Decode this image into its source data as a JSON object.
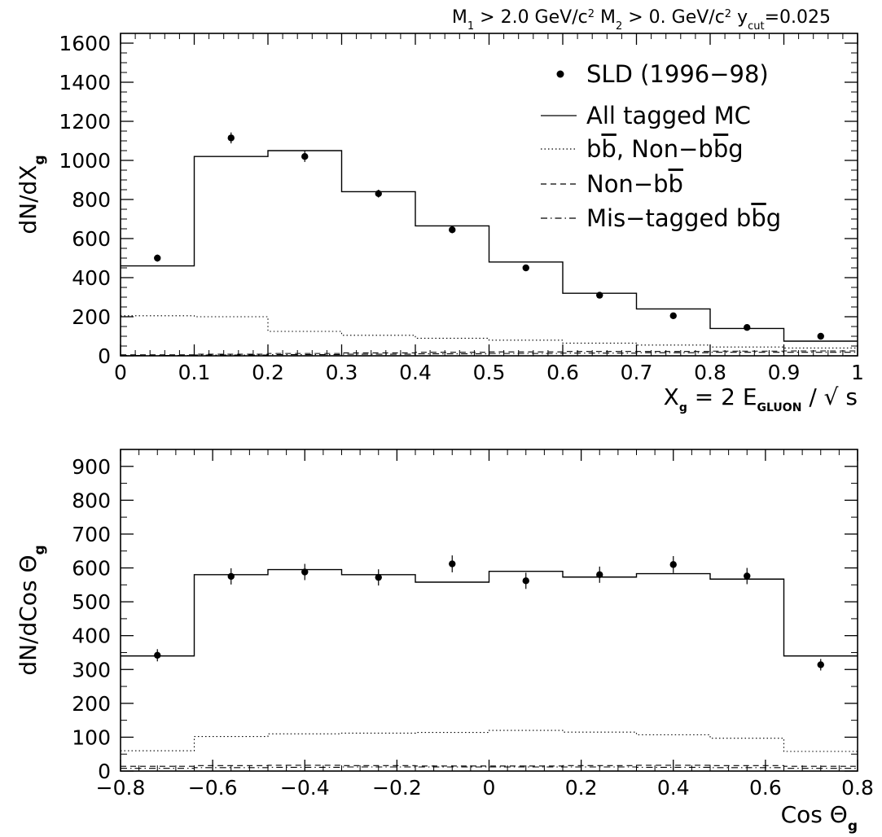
{
  "header": {
    "title_parts": [
      "M",
      "1",
      " > 2.0 GeV/c",
      "2",
      "  M",
      "2",
      " > 0. GeV/c",
      "2",
      "  y",
      "cut",
      "=0.025"
    ]
  },
  "chart_data": [
    {
      "type": "histogram",
      "panel": "top",
      "xlabel_parts": [
        "X",
        "g",
        " = 2 E",
        "GLUON",
        " / √ s"
      ],
      "ylabel_parts": [
        "dN/dX",
        "g"
      ],
      "xlim": [
        0,
        1
      ],
      "ylim": [
        0,
        1650
      ],
      "x_ticks": [
        0,
        0.1,
        0.2,
        0.3,
        0.4,
        0.5,
        0.6,
        0.7,
        0.8,
        0.9,
        1
      ],
      "x_tick_labels": [
        "0",
        "0.1",
        "0.2",
        "0.3",
        "0.4",
        "0.5",
        "0.6",
        "0.7",
        "0.8",
        "0.9",
        "1"
      ],
      "y_ticks": [
        0,
        200,
        400,
        600,
        800,
        1000,
        1200,
        1400,
        1600
      ],
      "y_tick_labels": [
        "0",
        "200",
        "400",
        "600",
        "800",
        "1000",
        "1200",
        "1400",
        "1600"
      ],
      "bin_edges": [
        0,
        0.1,
        0.2,
        0.3,
        0.4,
        0.5,
        0.6,
        0.7,
        0.8,
        0.9,
        1.0
      ],
      "data_points": {
        "name": "SLD (1996−98)",
        "x": [
          0.05,
          0.15,
          0.25,
          0.35,
          0.45,
          0.55,
          0.65,
          0.75,
          0.85,
          0.95
        ],
        "y": [
          500,
          1115,
          1020,
          830,
          645,
          450,
          310,
          205,
          145,
          100
        ],
        "err": [
          18,
          28,
          28,
          20,
          18,
          14,
          10,
          8,
          6,
          5
        ]
      },
      "series": [
        {
          "name": "All tagged MC",
          "style": "solid",
          "values": [
            460,
            1020,
            1050,
            840,
            665,
            480,
            320,
            240,
            140,
            75
          ]
        },
        {
          "name": "bb, Non-bbg",
          "style": "dotted",
          "values": [
            205,
            200,
            125,
            105,
            90,
            80,
            65,
            55,
            45,
            40
          ]
        },
        {
          "name": "Non-bb",
          "style": "dashed",
          "values": [
            5,
            8,
            12,
            15,
            18,
            20,
            22,
            22,
            24,
            25
          ]
        },
        {
          "name": "Mis-tagged bbg",
          "style": "dashdot",
          "values": [
            2,
            4,
            6,
            8,
            10,
            12,
            14,
            16,
            18,
            18
          ]
        }
      ],
      "legend": {
        "position": "top-right",
        "entries": [
          {
            "style": "marker",
            "text": "SLD (1996−98)"
          },
          {
            "style": "solid",
            "text": "All tagged MC"
          },
          {
            "style": "dotted",
            "parts": [
              [
                "b",
                false
              ],
              [
                "b",
                true
              ],
              [
                ", Non−b",
                false
              ],
              [
                "b",
                true
              ],
              [
                "g",
                false
              ]
            ]
          },
          {
            "style": "dashed",
            "parts": [
              [
                "Non−b",
                false
              ],
              [
                "b",
                true
              ]
            ]
          },
          {
            "style": "dashdot",
            "parts": [
              [
                "Mis−tagged b",
                false
              ],
              [
                "b",
                true
              ],
              [
                "g",
                false
              ]
            ]
          }
        ]
      }
    },
    {
      "type": "histogram",
      "panel": "bottom",
      "xlabel_parts": [
        "Cos Θ",
        "g"
      ],
      "ylabel_parts": [
        "dN/dCos Θ",
        "g"
      ],
      "xlim": [
        -0.8,
        0.8
      ],
      "ylim": [
        0,
        950
      ],
      "x_ticks": [
        -0.8,
        -0.6,
        -0.4,
        -0.2,
        0,
        0.2,
        0.4,
        0.6,
        0.8
      ],
      "x_tick_labels": [
        "−0.8",
        "−0.6",
        "−0.4",
        "−0.2",
        "0",
        "0.2",
        "0.4",
        "0.6",
        "0.8"
      ],
      "y_ticks": [
        0,
        100,
        200,
        300,
        400,
        500,
        600,
        700,
        800,
        900
      ],
      "y_tick_labels": [
        "0",
        "100",
        "200",
        "300",
        "400",
        "500",
        "600",
        "700",
        "800",
        "900"
      ],
      "bin_edges": [
        -0.8,
        -0.64,
        -0.48,
        -0.32,
        -0.16,
        0,
        0.16,
        0.32,
        0.48,
        0.64,
        0.8
      ],
      "data_points": {
        "name": "SLD (1996−98)",
        "x": [
          -0.72,
          -0.56,
          -0.4,
          -0.24,
          -0.08,
          0.08,
          0.24,
          0.4,
          0.56,
          0.72
        ],
        "y": [
          342,
          575,
          588,
          572,
          612,
          562,
          580,
          610,
          576,
          314
        ],
        "err": [
          18,
          24,
          24,
          24,
          25,
          24,
          24,
          25,
          24,
          17
        ]
      },
      "series": [
        {
          "name": "All tagged MC",
          "style": "solid",
          "values": [
            340,
            580,
            595,
            580,
            558,
            590,
            573,
            583,
            567,
            340
          ]
        },
        {
          "name": "bb, Non-bbg",
          "style": "dotted",
          "values": [
            60,
            102,
            110,
            112,
            114,
            120,
            115,
            107,
            97,
            58
          ]
        },
        {
          "name": "Non-bb",
          "style": "dashed",
          "values": [
            14,
            16,
            17,
            16,
            15,
            15,
            16,
            17,
            16,
            14
          ]
        },
        {
          "name": "Mis-tagged bbg",
          "style": "dashdot",
          "values": [
            8,
            10,
            11,
            12,
            12,
            12,
            12,
            11,
            10,
            8
          ]
        }
      ]
    }
  ]
}
